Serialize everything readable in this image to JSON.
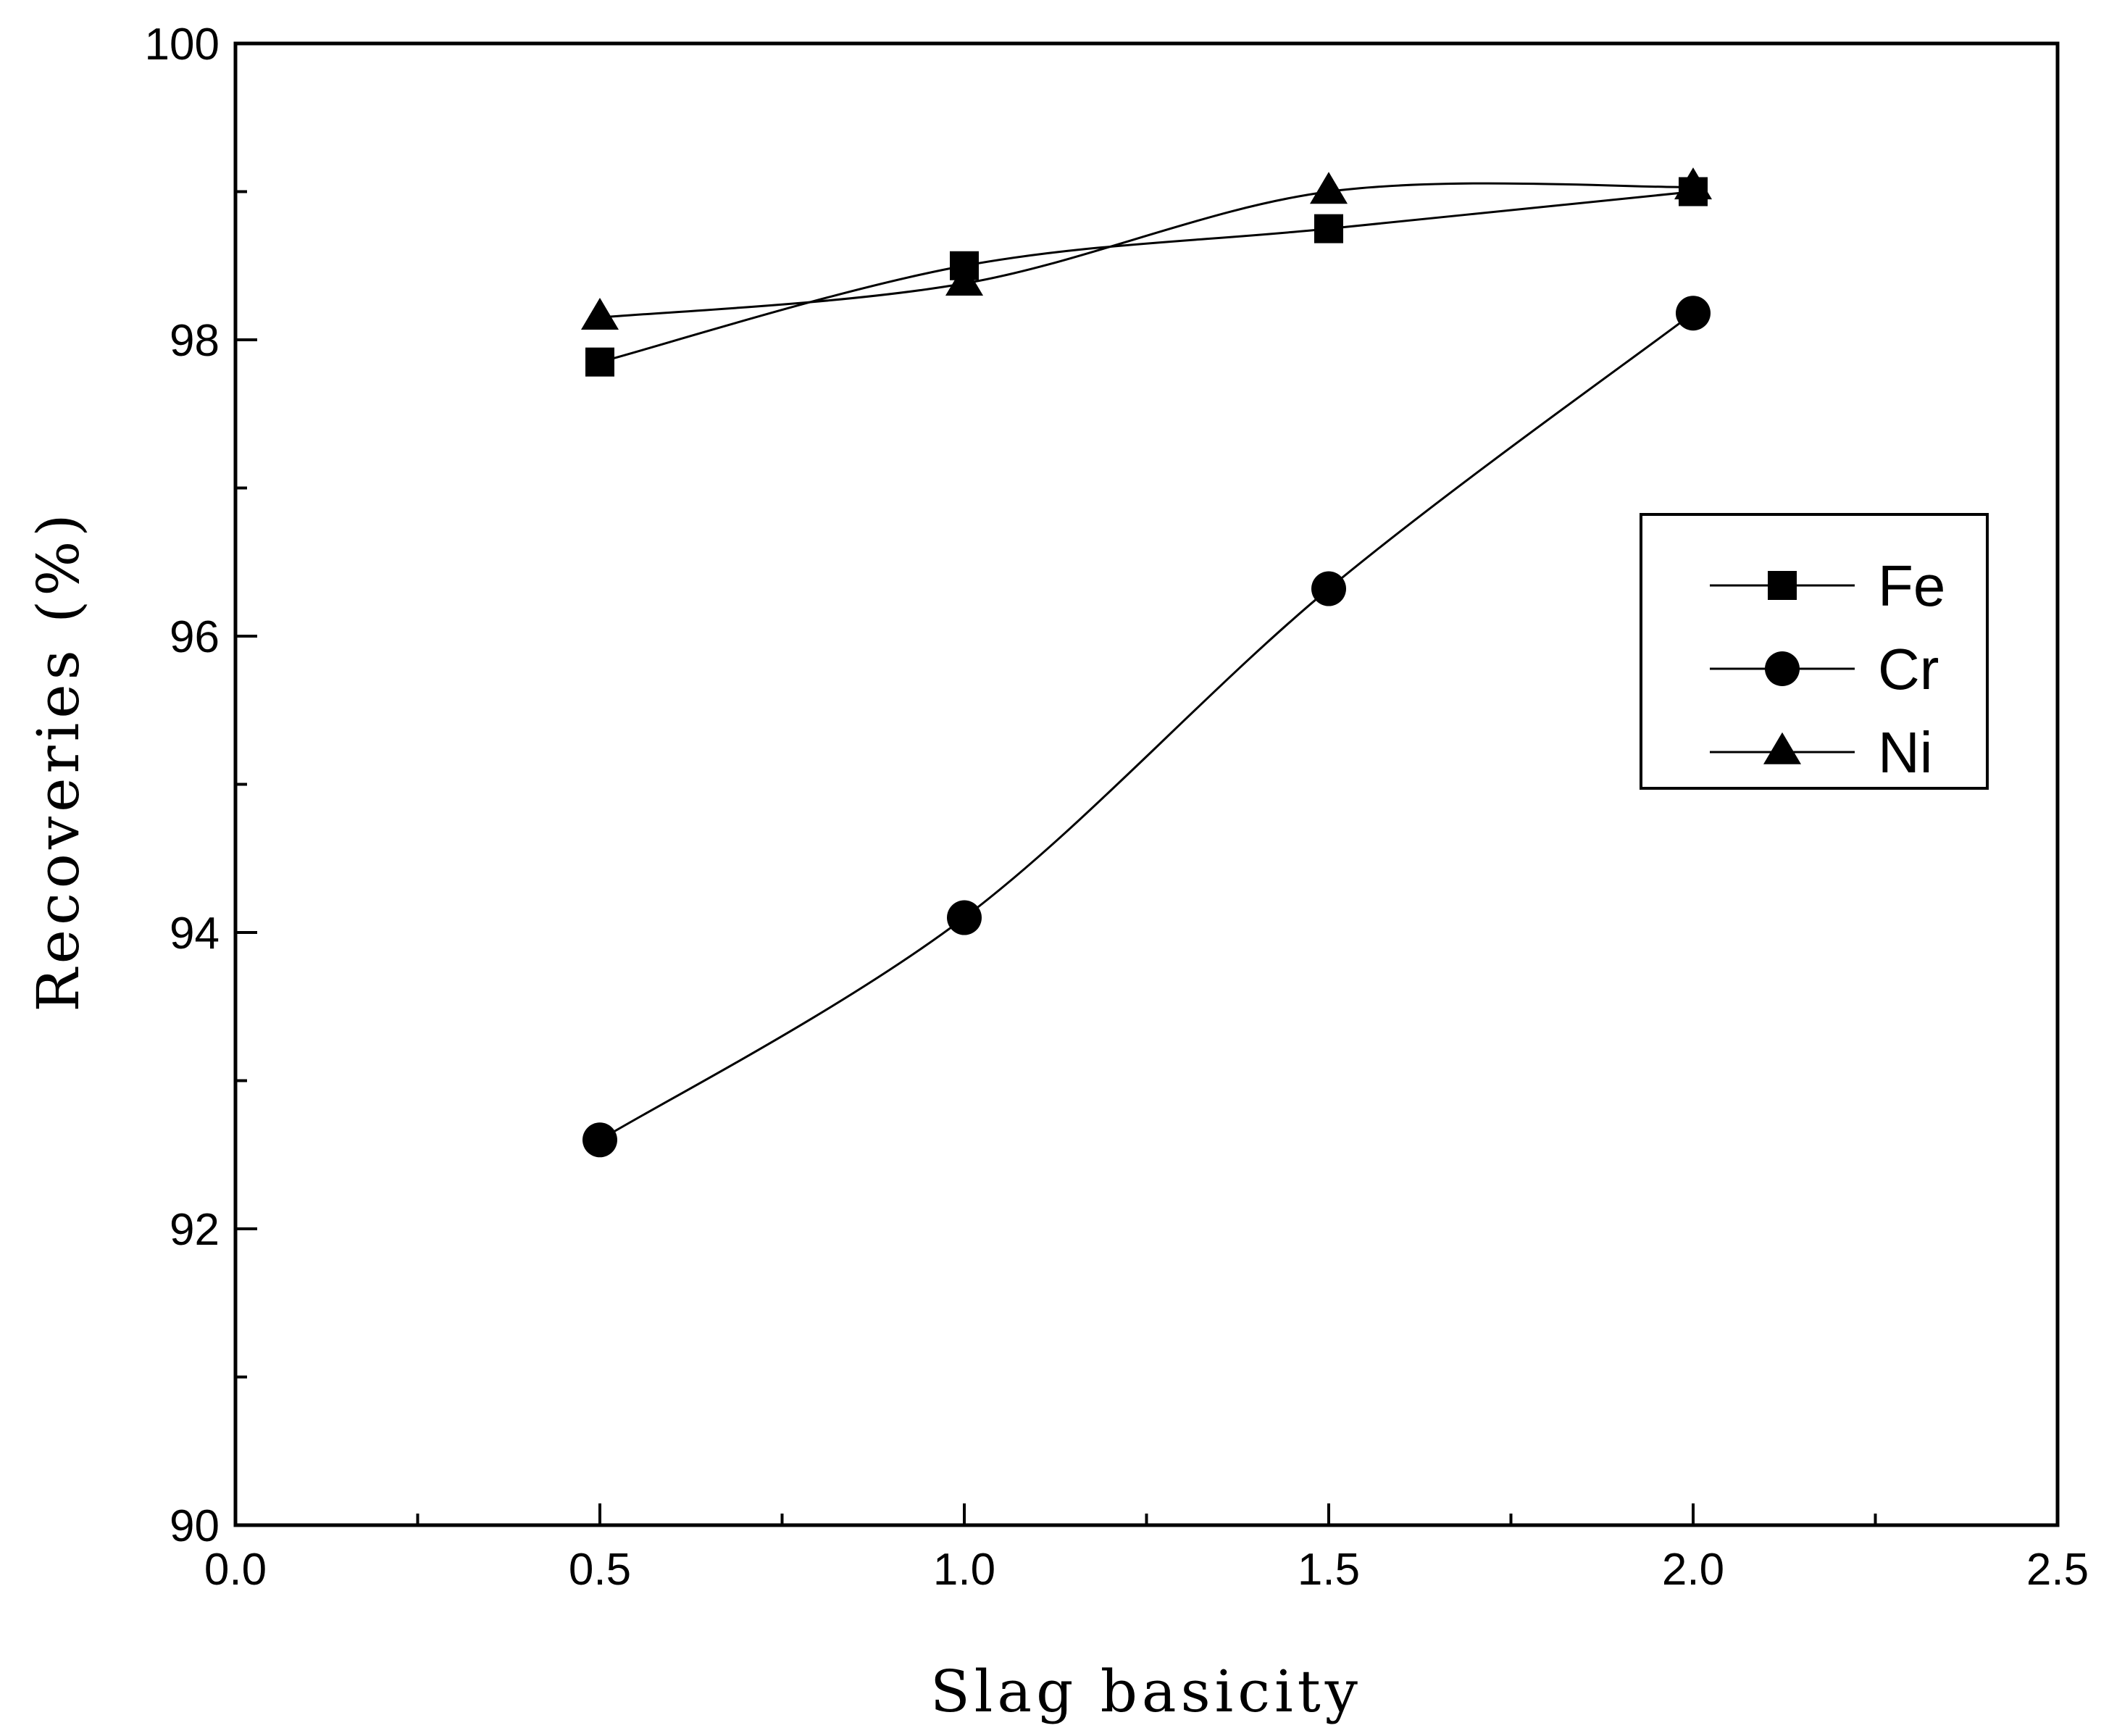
{
  "chart_data": {
    "type": "line",
    "title": "",
    "xlabel": "Slag basicity",
    "ylabel": "Recoveries (%)",
    "xlim": [
      0.0,
      2.5
    ],
    "ylim": [
      90,
      100
    ],
    "x_ticks": [
      "0.0",
      "0.5",
      "1.0",
      "1.5",
      "2.0",
      "2.5"
    ],
    "y_ticks": [
      "90",
      "92",
      "94",
      "96",
      "98",
      "100"
    ],
    "grid": false,
    "legend_position": "right",
    "x": [
      0.5,
      1.0,
      1.5,
      2.0
    ],
    "series": [
      {
        "name": "Fe",
        "marker": "square",
        "values": [
          97.85,
          98.5,
          98.75,
          99.0
        ]
      },
      {
        "name": "Cr",
        "marker": "circle",
        "values": [
          92.6,
          94.1,
          96.32,
          98.18
        ]
      },
      {
        "name": "Ni",
        "marker": "triangle",
        "values": [
          98.15,
          98.38,
          99.0,
          99.03
        ]
      }
    ]
  }
}
